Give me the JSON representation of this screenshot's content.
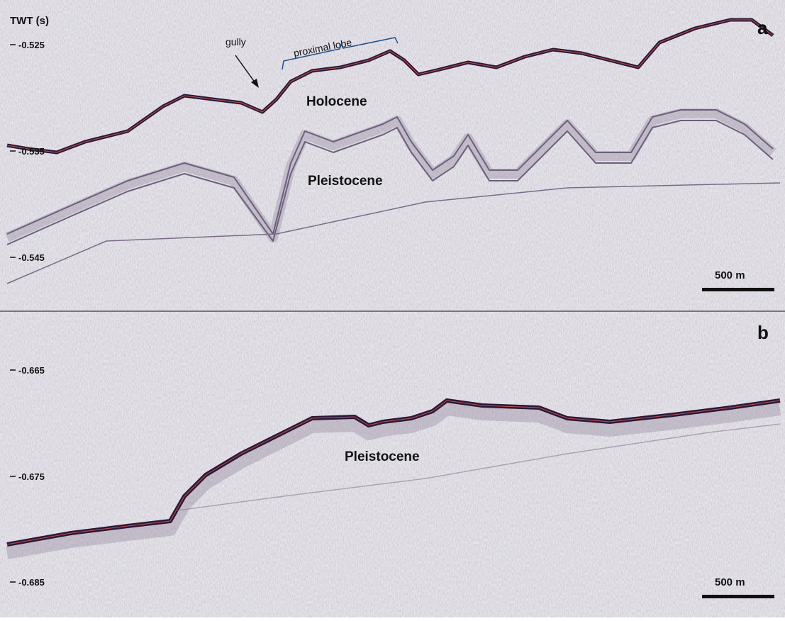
{
  "panels": [
    {
      "label": "a",
      "axis_title": "TWT (s)",
      "ticks": [
        "-0.525",
        "-0.535",
        "-0.545"
      ],
      "annotations": {
        "gully": "gully",
        "proximal_lobe": "proximal lobe"
      },
      "units": [
        "Holocene",
        "Pleistocene"
      ],
      "scale_bar": "500 m"
    },
    {
      "label": "b",
      "ticks": [
        "-0.665",
        "-0.675",
        "-0.685"
      ],
      "units": [
        "Pleistocene"
      ],
      "scale_bar": "500 m"
    }
  ]
}
